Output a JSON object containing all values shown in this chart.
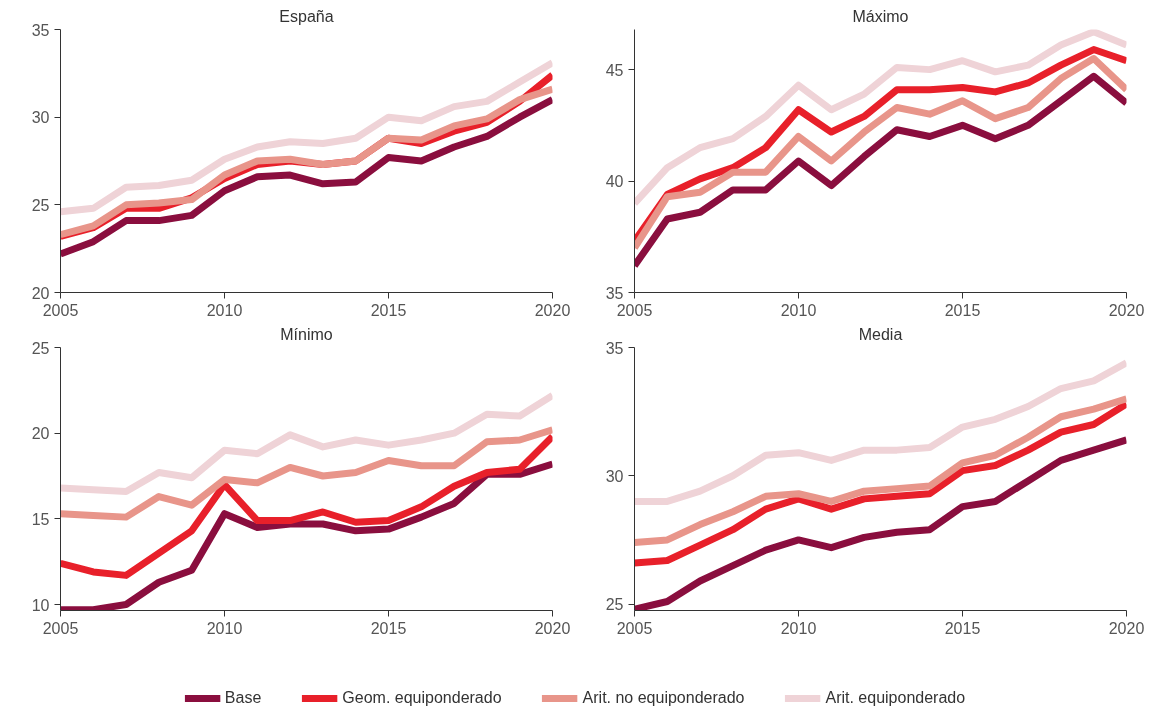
{
  "chart_data": [
    {
      "type": "line",
      "title": "España",
      "x": [
        2005,
        2006,
        2007,
        2008,
        2009,
        2010,
        2011,
        2012,
        2013,
        2014,
        2015,
        2016,
        2017,
        2018,
        2019,
        2020
      ],
      "xlim": [
        2005,
        2020
      ],
      "xticks": [
        2005,
        2010,
        2015,
        2020
      ],
      "ylim": [
        20,
        35
      ],
      "yticks": [
        20,
        25,
        30,
        35
      ],
      "grid": false,
      "legend": "bottom",
      "line_style": "solid",
      "marker": "none",
      "series": [
        {
          "name": "Base",
          "color": "#8a0e3e",
          "values": [
            22.2,
            22.9,
            24.1,
            24.1,
            24.4,
            25.8,
            26.6,
            26.7,
            26.2,
            26.3,
            27.7,
            27.5,
            28.3,
            28.9,
            30.0,
            31.0
          ]
        },
        {
          "name": "Geom. equiponderado",
          "color": "#e8202a",
          "values": [
            23.2,
            23.7,
            24.8,
            24.8,
            25.4,
            26.5,
            27.3,
            27.5,
            27.3,
            27.5,
            28.8,
            28.5,
            29.2,
            29.7,
            30.9,
            32.4
          ]
        },
        {
          "name": "Arit. no equiponderado",
          "color": "#e8958a",
          "values": [
            23.3,
            23.8,
            25.0,
            25.1,
            25.3,
            26.7,
            27.5,
            27.6,
            27.3,
            27.5,
            28.8,
            28.7,
            29.5,
            29.9,
            31.0,
            31.6
          ]
        },
        {
          "name": "Arit. equiponderado",
          "color": "#efd3d7",
          "values": [
            24.6,
            24.8,
            26.0,
            26.1,
            26.4,
            27.6,
            28.3,
            28.6,
            28.5,
            28.8,
            30.0,
            29.8,
            30.6,
            30.9,
            32.0,
            33.1
          ]
        }
      ]
    },
    {
      "type": "line",
      "title": "Máximo",
      "x": [
        2005,
        2006,
        2007,
        2008,
        2009,
        2010,
        2011,
        2012,
        2013,
        2014,
        2015,
        2016,
        2017,
        2018,
        2019,
        2020
      ],
      "xlim": [
        2005,
        2020
      ],
      "xticks": [
        2005,
        2010,
        2015,
        2020
      ],
      "ylim": [
        35,
        46.8
      ],
      "yticks": [
        35,
        40,
        45
      ],
      "grid": false,
      "line_style": "solid",
      "marker": "none",
      "series": [
        {
          "color": "#8a0e3e",
          "values": [
            36.2,
            38.3,
            38.6,
            39.6,
            39.6,
            40.9,
            39.8,
            41.1,
            42.3,
            42.0,
            42.5,
            41.9,
            42.5,
            43.6,
            44.7,
            43.5
          ]
        },
        {
          "color": "#e8202a",
          "values": [
            37.3,
            39.4,
            40.1,
            40.6,
            41.5,
            43.2,
            42.2,
            42.9,
            44.1,
            44.1,
            44.2,
            44.0,
            44.4,
            45.2,
            45.9,
            45.4
          ]
        },
        {
          "color": "#e8958a",
          "values": [
            37.0,
            39.3,
            39.5,
            40.4,
            40.4,
            42.0,
            40.9,
            42.2,
            43.3,
            43.0,
            43.6,
            42.8,
            43.3,
            44.6,
            45.5,
            44.1
          ]
        },
        {
          "color": "#efd3d7",
          "values": [
            39.0,
            40.6,
            41.5,
            41.9,
            42.9,
            44.3,
            43.2,
            43.9,
            45.1,
            45.0,
            45.4,
            44.9,
            45.2,
            46.1,
            46.7,
            46.1
          ]
        }
      ]
    },
    {
      "type": "line",
      "title": "Mínimo",
      "x": [
        2005,
        2006,
        2007,
        2008,
        2009,
        2010,
        2011,
        2012,
        2013,
        2014,
        2015,
        2016,
        2017,
        2018,
        2019,
        2020
      ],
      "xlim": [
        2005,
        2020
      ],
      "xticks": [
        2005,
        2010,
        2015,
        2020
      ],
      "ylim": [
        9.65,
        25
      ],
      "yticks": [
        10,
        15,
        20,
        25
      ],
      "grid": false,
      "line_style": "solid",
      "marker": "none",
      "series": [
        {
          "color": "#8a0e3e",
          "values": [
            9.7,
            9.7,
            10.0,
            11.3,
            12.0,
            15.3,
            14.5,
            14.7,
            14.7,
            14.3,
            14.4,
            15.1,
            15.9,
            17.6,
            17.6,
            18.2
          ]
        },
        {
          "color": "#e8202a",
          "values": [
            12.4,
            11.9,
            11.7,
            13.0,
            14.3,
            17.0,
            14.9,
            14.9,
            15.4,
            14.8,
            14.9,
            15.7,
            16.9,
            17.7,
            17.9,
            19.8
          ]
        },
        {
          "color": "#e8958a",
          "values": [
            15.3,
            15.2,
            15.1,
            16.3,
            15.8,
            17.3,
            17.1,
            18.0,
            17.5,
            17.7,
            18.4,
            18.1,
            18.1,
            19.5,
            19.6,
            20.2
          ]
        },
        {
          "color": "#efd3d7",
          "values": [
            16.8,
            16.7,
            16.6,
            17.7,
            17.4,
            19.0,
            18.8,
            19.9,
            19.2,
            19.6,
            19.3,
            19.6,
            20.0,
            21.1,
            21.0,
            22.2
          ]
        }
      ]
    },
    {
      "type": "line",
      "title": "Media",
      "x": [
        2005,
        2006,
        2007,
        2008,
        2009,
        2010,
        2011,
        2012,
        2013,
        2014,
        2015,
        2016,
        2017,
        2018,
        2019,
        2020
      ],
      "xlim": [
        2005,
        2020
      ],
      "xticks": [
        2005,
        2010,
        2015,
        2020
      ],
      "ylim": [
        24.75,
        35
      ],
      "yticks": [
        25,
        30,
        35
      ],
      "grid": false,
      "line_style": "solid",
      "marker": "none",
      "series": [
        {
          "color": "#8a0e3e",
          "values": [
            24.8,
            25.1,
            25.9,
            26.5,
            27.1,
            27.5,
            27.2,
            27.6,
            27.8,
            27.9,
            28.8,
            29.0,
            29.8,
            30.6,
            31.0,
            31.4
          ]
        },
        {
          "color": "#e8202a",
          "values": [
            26.6,
            26.7,
            27.3,
            27.9,
            28.7,
            29.1,
            28.7,
            29.1,
            29.2,
            29.3,
            30.2,
            30.4,
            31.0,
            31.7,
            32.0,
            32.8
          ]
        },
        {
          "color": "#e8958a",
          "values": [
            27.4,
            27.5,
            28.1,
            28.6,
            29.2,
            29.3,
            29.0,
            29.4,
            29.5,
            29.6,
            30.5,
            30.8,
            31.5,
            32.3,
            32.6,
            33.0
          ]
        },
        {
          "color": "#efd3d7",
          "values": [
            29.0,
            29.0,
            29.4,
            30.0,
            30.8,
            30.9,
            30.6,
            31.0,
            31.0,
            31.1,
            31.9,
            32.2,
            32.7,
            33.4,
            33.7,
            34.4
          ]
        }
      ]
    }
  ]
}
